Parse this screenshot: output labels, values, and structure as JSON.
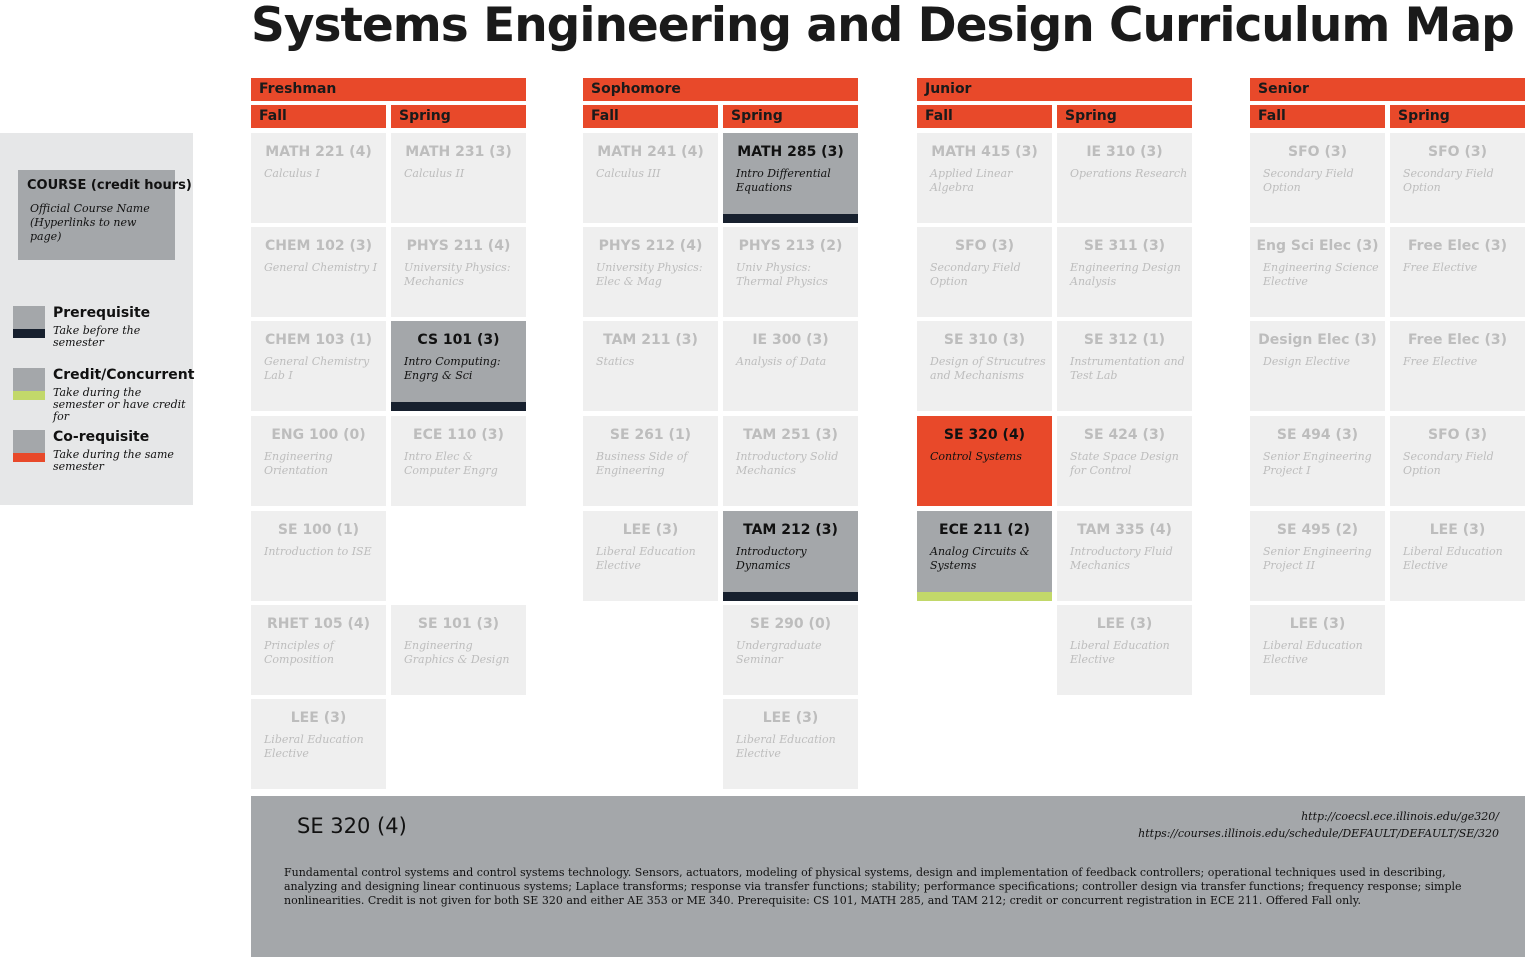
{
  "title": "Systems Engineering and Design Curriculum Map",
  "legend": {
    "sample_title": "COURSE (credit hours)",
    "sample_subtitle": "Official Course Name (Hyperlinks to new page)",
    "items": [
      {
        "title": "Prerequisite",
        "desc": "Take before the semester",
        "color": "#17202e"
      },
      {
        "title": "Credit/Concurrent",
        "desc": "Take during the semester or have credit for",
        "color": "#c2d86a"
      },
      {
        "title": "Co-requisite",
        "desc": "Take during the same semester",
        "color": "#e8492a"
      }
    ]
  },
  "years": [
    "Freshman",
    "Sophomore",
    "Junior",
    "Senior"
  ],
  "semester_labels": [
    "Fall",
    "Spring",
    "Fall",
    "Spring",
    "Fall",
    "Spring",
    "Fall",
    "Spring"
  ],
  "colors": {
    "accent": "#e8492a",
    "active": "#a4a7aa",
    "inactive": "#efefef",
    "prerequisite": "#17202e",
    "concurrent": "#c2d86a"
  },
  "semesters": [
    {
      "courses": [
        {
          "code": "MATH 221 (4)",
          "name": "Calculus I"
        },
        {
          "code": "CHEM 102 (3)",
          "name": "General Chemistry I"
        },
        {
          "code": "CHEM 103 (1)",
          "name": "General Chemistry Lab I"
        },
        {
          "code": "ENG 100 (0)",
          "name": "Engineering Orientation"
        },
        {
          "code": "SE 100 (1)",
          "name": "Introduction to ISE"
        },
        {
          "code": "RHET 105 (4)",
          "name": "Principles of Composition"
        },
        {
          "code": "LEE (3)",
          "name": "Liberal Education Elective"
        }
      ]
    },
    {
      "courses": [
        {
          "code": "MATH 231 (3)",
          "name": "Calculus II"
        },
        {
          "code": "PHYS 211 (4)",
          "name": "University Physics: Mechanics"
        },
        {
          "code": "CS 101 (3)",
          "name": "Intro Computing: Engrg & Sci",
          "state": "prerequisite"
        },
        {
          "code": "ECE 110 (3)",
          "name": "Intro Elec & Computer Engrg"
        },
        null,
        {
          "code": "SE 101 (3)",
          "name": "Engineering Graphics & Design"
        }
      ]
    },
    {
      "courses": [
        {
          "code": "MATH 241 (4)",
          "name": "Calculus III"
        },
        {
          "code": "PHYS 212 (4)",
          "name": "University Physics: Elec & Mag"
        },
        {
          "code": "TAM 211 (3)",
          "name": "Statics"
        },
        {
          "code": "SE 261 (1)",
          "name": "Business Side of Engineering"
        },
        {
          "code": "LEE (3)",
          "name": "Liberal Education Elective"
        }
      ]
    },
    {
      "courses": [
        {
          "code": "MATH 285 (3)",
          "name": "Intro Differential Equations",
          "state": "prerequisite"
        },
        {
          "code": "PHYS 213 (2)",
          "name": "Univ Physics: Thermal Physics"
        },
        {
          "code": "IE 300 (3)",
          "name": "Analysis of Data"
        },
        {
          "code": "TAM 251 (3)",
          "name": "Introductory Solid Mechanics"
        },
        {
          "code": "TAM 212 (3)",
          "name": "Introductory Dynamics",
          "state": "prerequisite"
        },
        {
          "code": "SE 290 (0)",
          "name": "Undergraduate Seminar"
        },
        {
          "code": "LEE (3)",
          "name": "Liberal Education Elective"
        }
      ]
    },
    {
      "courses": [
        {
          "code": "MATH 415 (3)",
          "name": "Applied Linear Algebra"
        },
        {
          "code": "SFO (3)",
          "name": "Secondary Field Option"
        },
        {
          "code": "SE 310 (3)",
          "name": "Design of Strucutres and Mechanisms"
        },
        {
          "code": "SE 320 (4)",
          "name": "Control Systems",
          "state": "focus"
        },
        {
          "code": "ECE 211 (2)",
          "name": "Analog Circuits & Systems",
          "state": "concurrent"
        }
      ]
    },
    {
      "courses": [
        {
          "code": "IE 310 (3)",
          "name": "Operations Research"
        },
        {
          "code": "SE 311 (3)",
          "name": "Engineering Design Analysis"
        },
        {
          "code": "SE 312 (1)",
          "name": "Instrumentation and Test Lab"
        },
        {
          "code": "SE 424 (3)",
          "name": "State Space Design for Control"
        },
        {
          "code": "TAM 335 (4)",
          "name": "Introductory Fluid Mechanics"
        },
        {
          "code": "LEE (3)",
          "name": "Liberal Education Elective"
        }
      ]
    },
    {
      "courses": [
        {
          "code": "SFO (3)",
          "name": "Secondary Field Option"
        },
        {
          "code": "Eng Sci Elec (3)",
          "name": "Engineering Science Elective"
        },
        {
          "code": "Design Elec (3)",
          "name": "Design Elective"
        },
        {
          "code": "SE 494 (3)",
          "name": "Senior Engineering Project I"
        },
        {
          "code": "SE 495 (2)",
          "name": "Senior Engineering Project II"
        },
        {
          "code": "LEE (3)",
          "name": "Liberal Education Elective"
        }
      ]
    },
    {
      "courses": [
        {
          "code": "SFO (3)",
          "name": "Secondary Field Option"
        },
        {
          "code": "Free Elec (3)",
          "name": "Free Elective"
        },
        {
          "code": "Free Elec (3)",
          "name": "Free Elective"
        },
        {
          "code": "SFO (3)",
          "name": "Secondary Field Option"
        },
        {
          "code": "LEE (3)",
          "name": "Liberal Education Elective"
        }
      ]
    }
  ],
  "detail": {
    "title": "SE 320 (4)",
    "links": [
      "http://coecsl.ece.illinois.edu/ge320/",
      "https://courses.illinois.edu/schedule/DEFAULT/DEFAULT/SE/320"
    ],
    "description": "Fundamental control systems and control systems technology. Sensors, actuators, modeling of physical systems, design and implementation of feedback controllers; operational techniques used in describing, analyzing and designing linear continuous systems; Laplace transforms; response via transfer functions; stability; performance specifications; controller design via transfer functions; frequency response; simple nonlinearities. Credit is not given for both SE 320 and either AE 353 or ME 340. Prerequisite: CS 101, MATH 285, and TAM 212; credit or concurrent registration in ECE 211. Offered Fall only."
  }
}
